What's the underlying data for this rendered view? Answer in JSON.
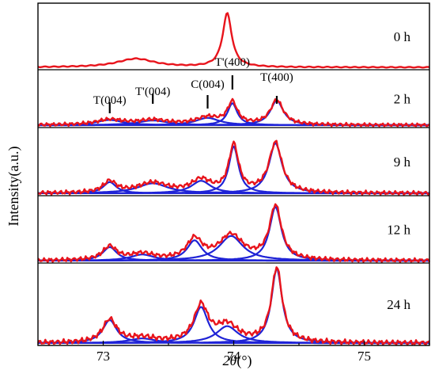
{
  "chart_data": {
    "type": "line",
    "xlabel": "2θ(°)",
    "xlabel_parts": {
      "var": "2θ",
      "unit": "(°)"
    },
    "ylabel": "Intensity(a.u.)",
    "xlim": [
      72.5,
      75.5
    ],
    "x_ticks": [
      73,
      74,
      75
    ],
    "colors": {
      "experimental": "#e8141c",
      "fitted": "#1f23d6"
    },
    "peak_labels": [
      {
        "text": "T(004)",
        "x": 73.05
      },
      {
        "text": "T'(004)",
        "x": 73.38
      },
      {
        "text": "C(004)",
        "x": 73.8
      },
      {
        "text": "T'(400)",
        "x": 73.99
      },
      {
        "text": "T(400)",
        "x": 74.33
      }
    ],
    "panels": [
      {
        "label": "0 h",
        "ylim": [
          0,
          1
        ],
        "experimental_peaks": [
          {
            "center": 73.95,
            "height": 0.88,
            "width": 0.085
          },
          {
            "center": 73.25,
            "height": 0.14,
            "width": 0.35
          }
        ],
        "components": []
      },
      {
        "label": "2 h",
        "ylim": [
          0,
          1
        ],
        "experimental_peaks": [],
        "components": [
          {
            "center": 73.05,
            "height": 0.1,
            "width": 0.25
          },
          {
            "center": 73.38,
            "height": 0.09,
            "width": 0.28
          },
          {
            "center": 73.8,
            "height": 0.14,
            "width": 0.22
          },
          {
            "center": 73.99,
            "height": 0.42,
            "width": 0.09
          },
          {
            "center": 74.33,
            "height": 0.47,
            "width": 0.12
          }
        ]
      },
      {
        "label": "9 h",
        "ylim": [
          0,
          1
        ],
        "experimental_peaks": [],
        "components": [
          {
            "center": 73.05,
            "height": 0.18,
            "width": 0.12
          },
          {
            "center": 73.38,
            "height": 0.16,
            "width": 0.28
          },
          {
            "center": 73.75,
            "height": 0.2,
            "width": 0.18
          },
          {
            "center": 74.0,
            "height": 0.75,
            "width": 0.09
          },
          {
            "center": 74.32,
            "height": 0.8,
            "width": 0.12
          }
        ]
      },
      {
        "label": "12 h",
        "ylim": [
          0,
          1
        ],
        "experimental_peaks": [],
        "components": [
          {
            "center": 73.05,
            "height": 0.22,
            "width": 0.13
          },
          {
            "center": 73.3,
            "height": 0.1,
            "width": 0.22
          },
          {
            "center": 73.7,
            "height": 0.33,
            "width": 0.14
          },
          {
            "center": 73.98,
            "height": 0.4,
            "width": 0.22
          },
          {
            "center": 74.32,
            "height": 0.87,
            "width": 0.11
          }
        ]
      },
      {
        "label": "24 h",
        "ylim": [
          0,
          1
        ],
        "experimental_peaks": [],
        "components": [
          {
            "center": 73.05,
            "height": 0.3,
            "width": 0.13
          },
          {
            "center": 73.3,
            "height": 0.06,
            "width": 0.25
          },
          {
            "center": 73.75,
            "height": 0.47,
            "width": 0.13
          },
          {
            "center": 73.95,
            "height": 0.22,
            "width": 0.2
          },
          {
            "center": 74.33,
            "height": 0.97,
            "width": 0.1
          }
        ]
      }
    ]
  }
}
